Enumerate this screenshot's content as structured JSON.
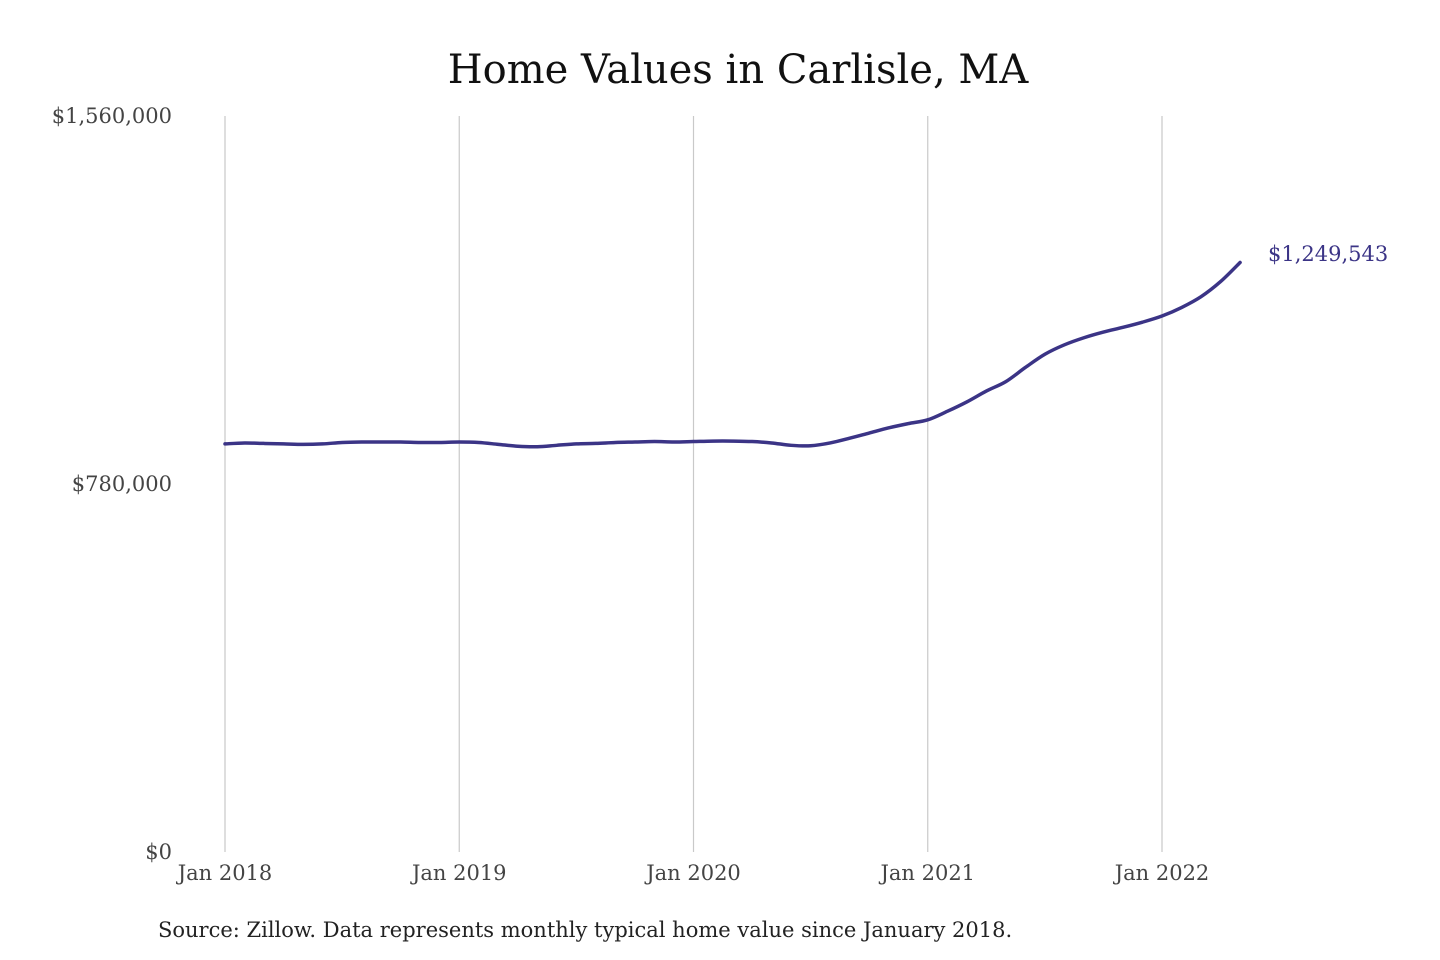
{
  "chart_data": {
    "type": "line",
    "title": "Home Values in Carlisle, MA",
    "xlabel": "",
    "ylabel": "",
    "ylim": [
      0,
      1560000
    ],
    "y_ticks": [
      0,
      780000,
      1560000
    ],
    "y_tick_labels": [
      "$0",
      "$780,000",
      "$1,560,000"
    ],
    "x_ticks": [
      "2018-01",
      "2019-01",
      "2020-01",
      "2021-01",
      "2022-01"
    ],
    "x_tick_labels": [
      "Jan 2018",
      "Jan 2019",
      "Jan 2020",
      "Jan 2021",
      "Jan 2022"
    ],
    "grid": "vertical",
    "legend": "none",
    "line_color": "#3b3486",
    "end_label": "$1,249,543",
    "series": [
      {
        "x": [
          "2018-01",
          "2018-02",
          "2018-03",
          "2018-04",
          "2018-05",
          "2018-06",
          "2018-07",
          "2018-08",
          "2018-09",
          "2018-10",
          "2018-11",
          "2018-12",
          "2019-01",
          "2019-02",
          "2019-03",
          "2019-04",
          "2019-05",
          "2019-06",
          "2019-07",
          "2019-08",
          "2019-09",
          "2019-10",
          "2019-11",
          "2019-12",
          "2020-01",
          "2020-02",
          "2020-03",
          "2020-04",
          "2020-05",
          "2020-06",
          "2020-07",
          "2020-08",
          "2020-09",
          "2020-10",
          "2020-11",
          "2020-12",
          "2021-01",
          "2021-02",
          "2021-03",
          "2021-04",
          "2021-05",
          "2021-06",
          "2021-07",
          "2021-08",
          "2021-09",
          "2021-10",
          "2021-11",
          "2021-12",
          "2022-01",
          "2022-02",
          "2022-03",
          "2022-04",
          "2022-05"
        ],
        "values": [
          865000,
          867000,
          866000,
          865000,
          864000,
          865000,
          868000,
          869000,
          869000,
          869000,
          868000,
          868000,
          869000,
          868000,
          864000,
          860000,
          859000,
          862000,
          865000,
          866000,
          868000,
          869000,
          870000,
          869000,
          870000,
          871000,
          871000,
          870000,
          867000,
          862000,
          861000,
          867000,
          877000,
          888000,
          899000,
          908000,
          916000,
          934000,
          954000,
          977000,
          997000,
          1027000,
          1055000,
          1075000,
          1090000,
          1102000,
          1112000,
          1123000,
          1136000,
          1154000,
          1177000,
          1209000,
          1249543
        ]
      }
    ]
  },
  "footer": {
    "source": "Source: Zillow. Data represents monthly typical home value since January 2018."
  }
}
